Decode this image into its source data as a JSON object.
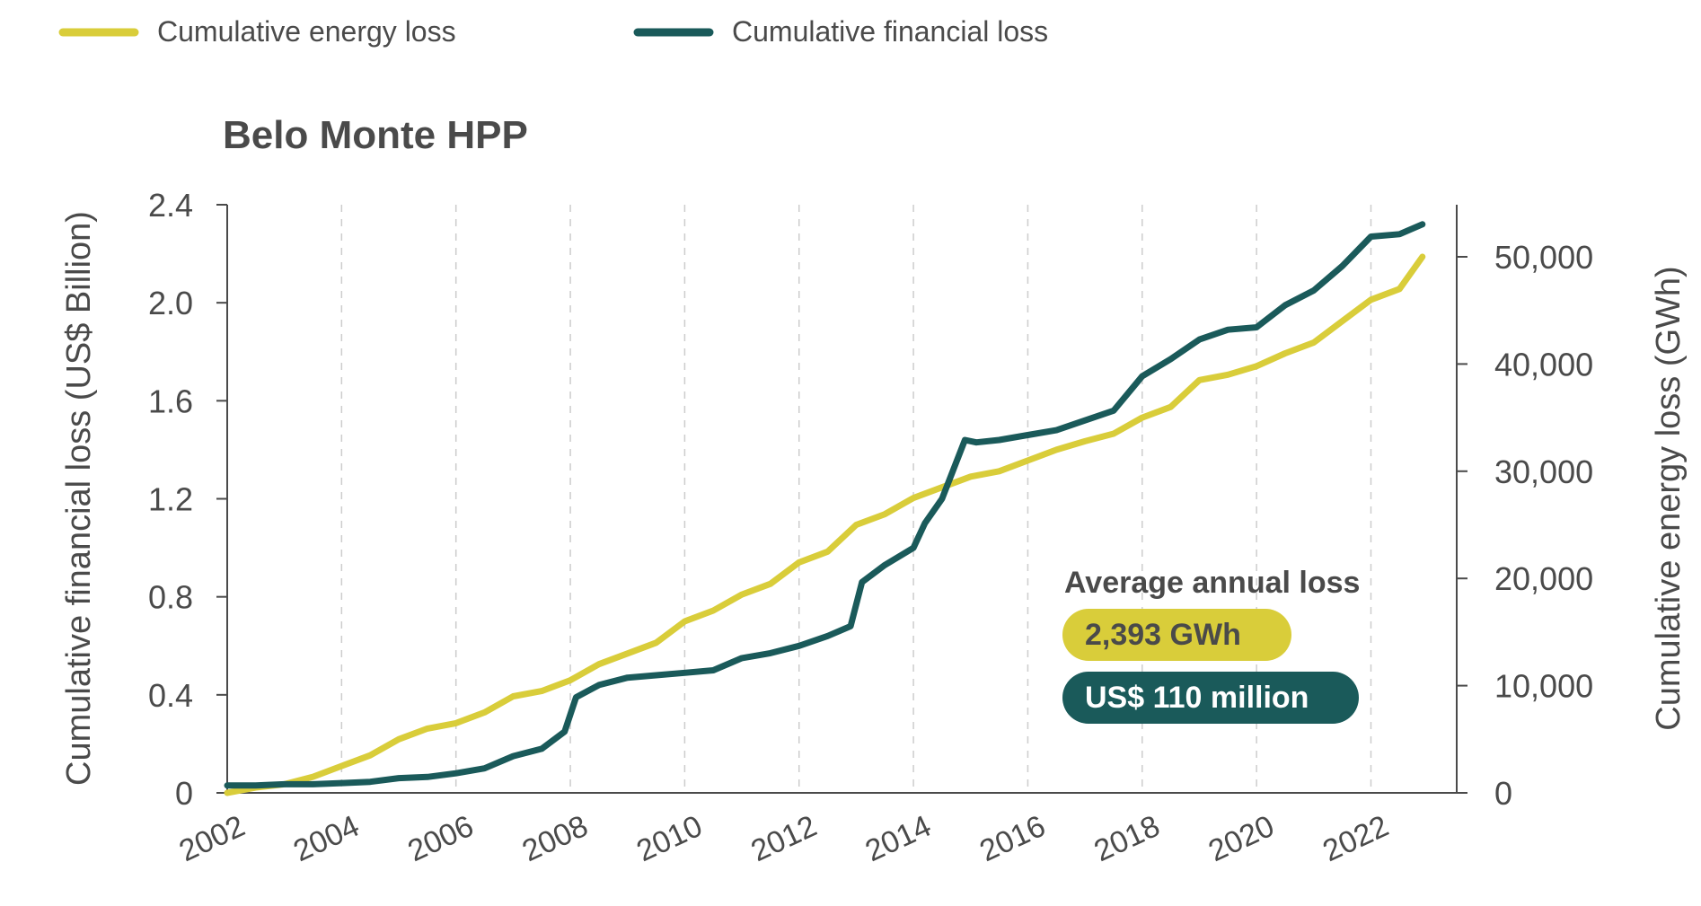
{
  "legend": [
    {
      "label": "Cumulative energy loss",
      "color": "#d9cd3a"
    },
    {
      "label": "Cumulative financial loss",
      "color": "#1a5a5a"
    }
  ],
  "annotation": {
    "title": "Average annual loss",
    "energy_value": "2,393 GWh",
    "financial_value": "US$ 110 million",
    "energy_color": "#d9cd3a",
    "financial_color": "#1a5a5a"
  },
  "chart_data": {
    "type": "line",
    "title": "Belo Monte HPP",
    "xlabel": "",
    "ylabel_left": "Cumulative financial loss (US$ Billion)",
    "ylabel_right": "Cumulative energy loss (GWh)",
    "xlim": [
      2002,
      2023.5
    ],
    "ylim_left": [
      0,
      2.4
    ],
    "ylim_right": [
      0,
      54857
    ],
    "x_ticks": [
      "2002",
      "2004",
      "2006",
      "2008",
      "2010",
      "2012",
      "2014",
      "2016",
      "2018",
      "2020",
      "2022"
    ],
    "y_left_ticks": [
      "0",
      "0.4",
      "0.8",
      "1.2",
      "1.6",
      "2.0",
      "2.4"
    ],
    "y_right_ticks": [
      "0",
      "10,000",
      "20,000",
      "30,000",
      "40,000",
      "50,000"
    ],
    "grid": "vertical dashed",
    "legend_position": "top-left",
    "series": [
      {
        "name": "Cumulative energy loss",
        "axis": "right",
        "color": "#d9cd3a",
        "x": [
          2002.0,
          2002.5,
          2003.0,
          2003.5,
          2004.0,
          2004.5,
          2005.0,
          2005.5,
          2006.0,
          2006.5,
          2007.0,
          2007.5,
          2008.0,
          2008.5,
          2009.0,
          2009.5,
          2010.0,
          2010.5,
          2011.0,
          2011.5,
          2012.0,
          2012.5,
          2013.0,
          2013.5,
          2014.0,
          2014.5,
          2015.0,
          2015.5,
          2016.0,
          2016.5,
          2017.0,
          2017.5,
          2018.0,
          2018.5,
          2019.0,
          2019.5,
          2020.0,
          2020.5,
          2021.0,
          2021.5,
          2022.0,
          2022.5,
          2022.9
        ],
        "y": [
          0,
          500,
          800,
          1500,
          2500,
          3500,
          5000,
          6000,
          6500,
          7500,
          9000,
          9500,
          10500,
          12000,
          13000,
          14000,
          16000,
          17000,
          18500,
          19500,
          21500,
          22500,
          25000,
          26000,
          27500,
          28500,
          29500,
          30000,
          31000,
          32000,
          32800,
          33500,
          35000,
          36000,
          38500,
          39000,
          39800,
          41000,
          42000,
          44000,
          46000,
          47000,
          50000
        ]
      },
      {
        "name": "Cumulative financial loss",
        "axis": "left",
        "color": "#1a5a5a",
        "x": [
          2002.0,
          2002.5,
          2003.0,
          2003.5,
          2004.0,
          2004.5,
          2005.0,
          2005.5,
          2006.0,
          2006.5,
          2007.0,
          2007.5,
          2007.9,
          2008.1,
          2008.5,
          2009.0,
          2009.5,
          2010.0,
          2010.5,
          2011.0,
          2011.5,
          2012.0,
          2012.5,
          2012.9,
          2013.1,
          2013.5,
          2014.0,
          2014.2,
          2014.5,
          2014.9,
          2015.1,
          2015.5,
          2016.0,
          2016.5,
          2017.0,
          2017.5,
          2018.0,
          2018.5,
          2019.0,
          2019.5,
          2020.0,
          2020.5,
          2021.0,
          2021.5,
          2022.0,
          2022.5,
          2022.9
        ],
        "y": [
          0.03,
          0.03,
          0.035,
          0.035,
          0.04,
          0.045,
          0.06,
          0.065,
          0.08,
          0.1,
          0.15,
          0.18,
          0.25,
          0.39,
          0.44,
          0.47,
          0.48,
          0.49,
          0.5,
          0.55,
          0.57,
          0.6,
          0.64,
          0.68,
          0.86,
          0.93,
          1.0,
          1.1,
          1.2,
          1.44,
          1.43,
          1.44,
          1.46,
          1.48,
          1.52,
          1.56,
          1.7,
          1.77,
          1.85,
          1.89,
          1.9,
          1.99,
          2.05,
          2.15,
          2.27,
          2.28,
          2.32
        ]
      }
    ]
  }
}
